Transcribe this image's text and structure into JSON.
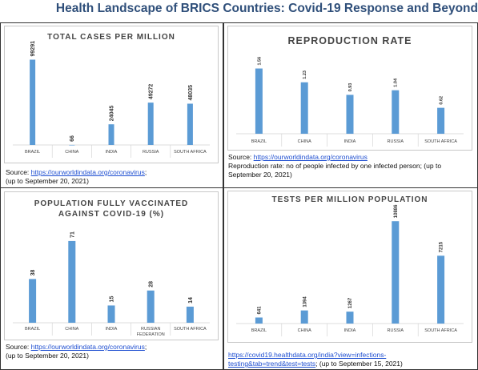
{
  "title": "Health Landscape of BRICS Countries: Covid-19 Response and Beyond",
  "colors": {
    "bar": "#5b9bd5",
    "title": "#2f4f7a",
    "link": "#1f4fd1"
  },
  "panels": {
    "cases": {
      "source_prefix": "Source: ",
      "source_link": "https://ourworldindata.org/coronavirus",
      "source_suffix": ";",
      "note": "(up to September 20, 2021)"
    },
    "reproduction": {
      "source_prefix": "Source: ",
      "source_link": "https://ourworldindata.org/coronavirus",
      "note": "Reproduction rate: no of people infected by one infected person; (up to September 20, 2021)"
    },
    "vaccinated": {
      "source_prefix": "Source: ",
      "source_link": "https://ourworldindata.org/coronavirus",
      "source_suffix": ";",
      "note": "(up to September 20, 2021)"
    },
    "tests": {
      "source_link_1": "https://covid19.healthdata.org/india?view=infections-",
      "source_link_2": "testing&tab=trend&test=tests",
      "note": "; (up to September 15, 2021)"
    }
  },
  "chart_data": [
    {
      "type": "bar",
      "title": "TOTAL CASES PER MILLION",
      "categories": [
        "BRAZIL",
        "CHINA",
        "INDIA",
        "RUSSIA",
        "SOUTH AFRICA"
      ],
      "values": [
        99291,
        66,
        24045,
        49272,
        48035
      ],
      "labels": [
        "99291",
        "66",
        "24045",
        "49272",
        "48035"
      ],
      "ylim": [
        0,
        110000
      ],
      "grid": false
    },
    {
      "type": "bar",
      "title": "REPRODUCTION RATE",
      "categories": [
        "BRAZIL",
        "CHINA",
        "INDIA",
        "RUSSIA",
        "SOUTH AFRICA"
      ],
      "values": [
        1.56,
        1.23,
        0.93,
        1.04,
        0.62
      ],
      "labels": [
        "1.56",
        "1.23",
        "0.93",
        "1.04",
        "0.62"
      ],
      "ylim": [
        0,
        1.8
      ],
      "grid": false
    },
    {
      "type": "bar",
      "title": "POPULATION FULLY VACCINATED AGAINST COVID-19 (%)",
      "title_lines": [
        "POPULATION FULLY VACCINATED",
        "AGAINST COVID-19 (%)"
      ],
      "categories": [
        "BRAZIL",
        "CHINA",
        "INDIA",
        "RUSSIAN FEDERATION",
        "SOUTH AFRICA"
      ],
      "category_lines": [
        [
          "BRAZIL"
        ],
        [
          "CHINA"
        ],
        [
          "INDIA"
        ],
        [
          "RUSSIAN",
          "FEDERATION"
        ],
        [
          "SOUTH AFRICA"
        ]
      ],
      "values": [
        38,
        71,
        15,
        28,
        14
      ],
      "labels": [
        "38",
        "71",
        "15",
        "28",
        "14"
      ],
      "ylim": [
        0,
        80
      ],
      "grid": false
    },
    {
      "type": "bar",
      "title": "TESTS PER MILLION POPULATION",
      "categories": [
        "BRAZIL",
        "CHINA",
        "INDIA",
        "RUSSIA",
        "SOUTH AFRICA"
      ],
      "values": [
        641,
        1394,
        1267,
        10886,
        7215
      ],
      "labels": [
        "641",
        "1394",
        "1267",
        "10886",
        "7215"
      ],
      "ylim": [
        0,
        11500
      ],
      "grid": false
    }
  ]
}
